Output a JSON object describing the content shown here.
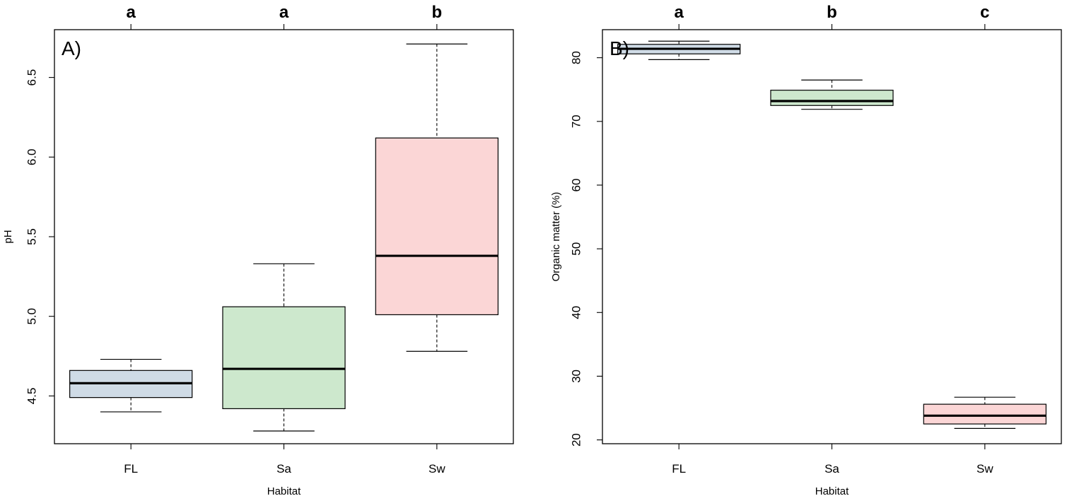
{
  "colors": {
    "FL": "#cfdbe6",
    "Sa": "#cde8cd",
    "Sw": "#fbd6d6",
    "line": "#000000"
  },
  "chart_data": [
    {
      "type": "box",
      "panel_label": "A)",
      "xlabel": "Habitat",
      "ylabel": "pH",
      "categories": [
        "FL",
        "Sa",
        "Sw"
      ],
      "group_letters": [
        "a",
        "a",
        "b"
      ],
      "ylim": [
        4.2,
        6.8
      ],
      "yticks": [
        4.5,
        5.0,
        5.5,
        6.0,
        6.5
      ],
      "ytick_labels": [
        "4.5",
        "5.0",
        "5.5",
        "6.0",
        "6.5"
      ],
      "boxes": [
        {
          "category": "FL",
          "min": 4.4,
          "q1": 4.49,
          "median": 4.58,
          "q3": 4.66,
          "max": 4.73
        },
        {
          "category": "Sa",
          "min": 4.28,
          "q1": 4.42,
          "median": 4.67,
          "q3": 5.06,
          "max": 5.33
        },
        {
          "category": "Sw",
          "min": 4.78,
          "q1": 5.01,
          "median": 5.38,
          "q3": 6.12,
          "max": 6.71
        }
      ]
    },
    {
      "type": "box",
      "panel_label": "B)",
      "xlabel": "Habitat",
      "ylabel": "Organic matter (%)",
      "categories": [
        "FL",
        "Sa",
        "Sw"
      ],
      "group_letters": [
        "a",
        "b",
        "c"
      ],
      "ylim": [
        19.4,
        84.4
      ],
      "yticks": [
        20,
        30,
        40,
        50,
        60,
        70,
        80
      ],
      "ytick_labels": [
        "20",
        "30",
        "40",
        "50",
        "60",
        "70",
        "80"
      ],
      "boxes": [
        {
          "category": "FL",
          "min": 79.7,
          "q1": 80.6,
          "median": 81.4,
          "q3": 82.1,
          "max": 82.6
        },
        {
          "category": "Sa",
          "min": 71.9,
          "q1": 72.5,
          "median": 73.2,
          "q3": 74.9,
          "max": 76.5
        },
        {
          "category": "Sw",
          "min": 21.8,
          "q1": 22.5,
          "median": 23.8,
          "q3": 25.6,
          "max": 26.7
        }
      ]
    }
  ]
}
